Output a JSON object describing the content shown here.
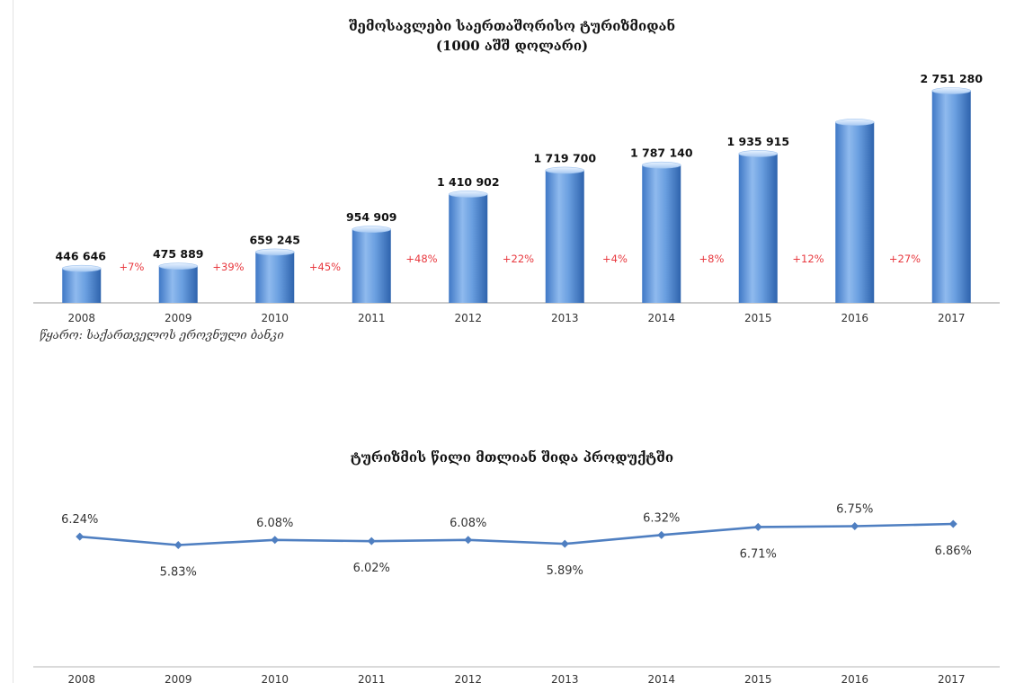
{
  "chart_data": [
    {
      "type": "bar",
      "title": "შემოსავლები საერთაშორისო ტურიზმიდან",
      "subtitle": "(1000 აშშ დოლარი)",
      "categories": [
        "2008",
        "2009",
        "2010",
        "2011",
        "2012",
        "2013",
        "2014",
        "2015",
        "2016",
        "2017"
      ],
      "values": [
        446646,
        475889,
        659245,
        954909,
        1410902,
        1719700,
        1787140,
        1935915,
        null,
        2751280
      ],
      "data_labels": [
        "446 646",
        "475 889",
        "659 245",
        "954 909",
        "1 410 902",
        "1 719 700",
        "1 787 140",
        "1 935 915",
        "",
        "2 751 280"
      ],
      "growth_labels": [
        "+7%",
        "+39%",
        "+45%",
        "+48%",
        "+22%",
        "+4%",
        "+8%",
        "+12%",
        "+27%"
      ],
      "source": "წყარო: საქართველოს ეროვნული ბანკი",
      "bar_color": "#5b93d8",
      "growth_color": "#e8393f"
    },
    {
      "type": "line",
      "title": "ტურიზმის წილი მთლიან შიდა პროდუქტში",
      "categories": [
        "2008",
        "2009",
        "2010",
        "2011",
        "2012",
        "2013",
        "2014",
        "2015",
        "2016",
        "2017"
      ],
      "values": [
        6.24,
        5.83,
        6.08,
        6.02,
        6.08,
        5.89,
        6.32,
        6.71,
        6.75,
        6.86
      ],
      "data_labels": [
        "6.24%",
        "5.83%",
        "6.08%",
        "6.02%",
        "6.08%",
        "5.89%",
        "6.32%",
        "6.71%",
        "6.75%",
        "6.86%"
      ],
      "line_color": "#4f7fc1"
    }
  ]
}
